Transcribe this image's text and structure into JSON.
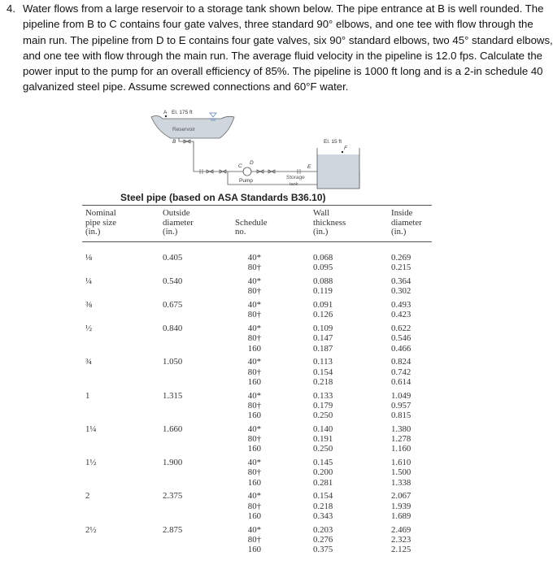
{
  "problem": {
    "number": "4.",
    "lines": [
      "Water flows from a large reservoir to a storage tank shown below. The pipe entrance at B is well rounded. The",
      "pipeline from B to C contains four gate valves, three standard 90° elbows, and one tee with flow through the",
      "main run. The pipeline from D to E contains four gate valves, six 90° standard elbows, two 45° standard elbows,",
      "and one tee with flow through the main run. The average fluid velocity in the pipeline is 12.0 fps. Calculate the",
      "power input to the pump for an overall efficiency of 85%. The pipeline is 1000 ft long and is a 2-in schedule 40",
      "galvanized steel pipe. Assume screwed connections and 60°F water."
    ]
  },
  "diagram": {
    "point_a": "A",
    "elev_a": "El. 175 ft",
    "reservoir": "Reservoir",
    "point_b": "B",
    "point_c": "C",
    "point_d": "D",
    "pump": "Pump",
    "point_e": "E",
    "point_f": "F",
    "elev_f": "El. 15 ft",
    "tank_1": "Storage",
    "tank_2": "tank"
  },
  "table": {
    "caption": "Steel pipe (based on ASA Standards B36.10)",
    "headers": [
      [
        "Nominal",
        "pipe size",
        "(in.)"
      ],
      [
        "Outside",
        "diameter",
        "(in.)"
      ],
      [
        "",
        "Schedule",
        "no."
      ],
      [
        "Wall",
        "thickness",
        "(in.)"
      ],
      [
        "Inside",
        "diameter",
        "(in.)"
      ]
    ],
    "rows": [
      {
        "size": "⅛",
        "od": "0.405",
        "sched": [
          "40*",
          "80†"
        ],
        "wall": [
          "0.068",
          "0.095"
        ],
        "id": [
          "0.269",
          "0.215"
        ]
      },
      {
        "size": "¼",
        "od": "0.540",
        "sched": [
          "40*",
          "80†"
        ],
        "wall": [
          "0.088",
          "0.119"
        ],
        "id": [
          "0.364",
          "0.302"
        ]
      },
      {
        "size": "⅜",
        "od": "0.675",
        "sched": [
          "40*",
          "80†"
        ],
        "wall": [
          "0.091",
          "0.126"
        ],
        "id": [
          "0.493",
          "0.423"
        ]
      },
      {
        "size": "½",
        "od": "0.840",
        "sched": [
          "40*",
          "80†",
          "160"
        ],
        "wall": [
          "0.109",
          "0.147",
          "0.187"
        ],
        "id": [
          "0.622",
          "0.546",
          "0.466"
        ]
      },
      {
        "size": "¾",
        "od": "1.050",
        "sched": [
          "40*",
          "80†",
          "160"
        ],
        "wall": [
          "0.113",
          "0.154",
          "0.218"
        ],
        "id": [
          "0.824",
          "0.742",
          "0.614"
        ]
      },
      {
        "size": "1",
        "od": "1.315",
        "sched": [
          "40*",
          "80†",
          "160"
        ],
        "wall": [
          "0.133",
          "0.179",
          "0.250"
        ],
        "id": [
          "1.049",
          "0.957",
          "0.815"
        ]
      },
      {
        "size": "1¼",
        "od": "1.660",
        "sched": [
          "40*",
          "80†",
          "160"
        ],
        "wall": [
          "0.140",
          "0.191",
          "0.250"
        ],
        "id": [
          "1.380",
          "1.278",
          "1.160"
        ]
      },
      {
        "size": "1½",
        "od": "1.900",
        "sched": [
          "40*",
          "80†",
          "160"
        ],
        "wall": [
          "0.145",
          "0.200",
          "0.281"
        ],
        "id": [
          "1.610",
          "1.500",
          "1.338"
        ]
      },
      {
        "size": "2",
        "od": "2.375",
        "sched": [
          "40*",
          "80†",
          "160"
        ],
        "wall": [
          "0.154",
          "0.218",
          "0.343"
        ],
        "id": [
          "2.067",
          "1.939",
          "1.689"
        ]
      },
      {
        "size": "2½",
        "od": "2.875",
        "sched": [
          "40*",
          "80†",
          "160"
        ],
        "wall": [
          "0.203",
          "0.276",
          "0.375"
        ],
        "id": [
          "2.469",
          "2.323",
          "2.125"
        ]
      }
    ]
  }
}
